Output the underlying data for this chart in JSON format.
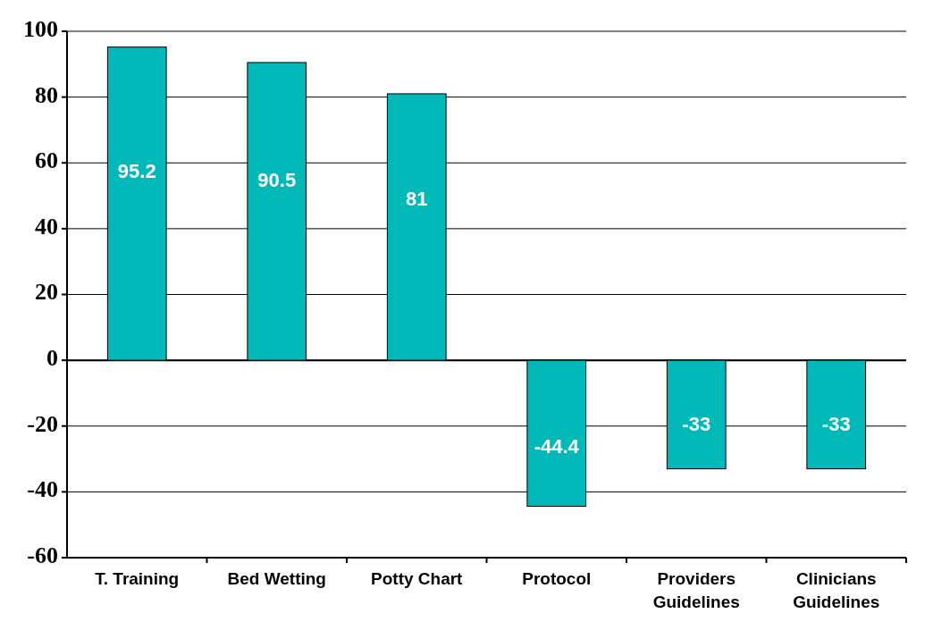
{
  "chart_data": {
    "type": "bar",
    "categories": [
      "T. Training",
      "Bed Wetting",
      "Potty Chart",
      "Protocol",
      "Providers Guidelines",
      "Clinicians Guidelines"
    ],
    "values": [
      95.2,
      90.5,
      81,
      -44.4,
      -33,
      -33
    ],
    "color": "#00b8b8",
    "ylim": [
      -60,
      100
    ],
    "yticks": [
      -60,
      -40,
      -20,
      0,
      20,
      40,
      60,
      80,
      100
    ],
    "grid": "y",
    "data_labels": true
  }
}
